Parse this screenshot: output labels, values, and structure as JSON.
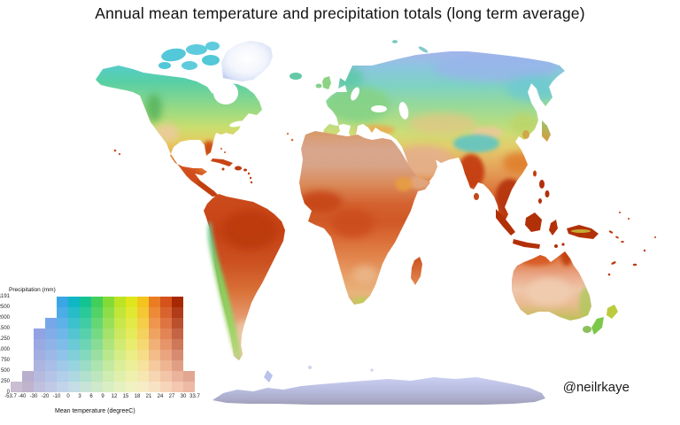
{
  "page": {
    "title": "Annual mean temperature and precipitation totals (long term average)",
    "attribution": "@neilrkaye",
    "background": "#ffffff"
  },
  "chart_data": {
    "type": "heatmap",
    "subtype": "bivariate choropleth world map (temperature hue x precipitation saturation), Robinson-style projection, white ocean",
    "title": "Annual mean temperature and precipitation totals (long term average)",
    "legend": {
      "y_axis_label": "Precipitation (mm)",
      "x_axis_label": "Mean temperature (degreeC)",
      "x_ticks": [
        "-53.7",
        "-40",
        "-30",
        "-20",
        "-10",
        "0",
        "3",
        "6",
        "9",
        "12",
        "15",
        "18",
        "21",
        "24",
        "27",
        "30",
        "33.7"
      ],
      "y_ticks_bottom_to_top": [
        "0",
        "250",
        "500",
        "750",
        "1000",
        "1250",
        "1500",
        "2000",
        "2500",
        "11191"
      ],
      "rows_bottom_to_top": [
        "0-250",
        "250-500",
        "500-750",
        "750-1000",
        "1000-1250",
        "1250-1500",
        "1500-2000",
        "2000-2500",
        "2500-11191"
      ],
      "columns": [
        {
          "temp_range": "-53.7 to -40",
          "color_dry": "#c9bed2",
          "color_wet": "#8a7ad0",
          "rows_present": 1
        },
        {
          "temp_range": "-40 to -30",
          "color_dry": "#c0b4cc",
          "color_wet": "#7f84dc",
          "rows_present": 2
        },
        {
          "temp_range": "-30 to -20",
          "color_dry": "#bfc0de",
          "color_wet": "#7591e4",
          "rows_present": 6
        },
        {
          "temp_range": "-20 to -10",
          "color_dry": "#c0c9e6",
          "color_wet": "#5f9ce8",
          "rows_present": 7
        },
        {
          "temp_range": "-10 to 0",
          "color_dry": "#c2d4ea",
          "color_wet": "#3ba6e6",
          "rows_present": 9
        },
        {
          "temp_range": "0 to 3",
          "color_dry": "#c4dde6",
          "color_wet": "#0fb7c4",
          "rows_present": 9
        },
        {
          "temp_range": "3 to 6",
          "color_dry": "#c8e4d8",
          "color_wet": "#13c492",
          "rows_present": 9
        },
        {
          "temp_range": "6 to 9",
          "color_dry": "#cfe9cb",
          "color_wet": "#41cf5a",
          "rows_present": 9
        },
        {
          "temp_range": "9 to 12",
          "color_dry": "#daeec3",
          "color_wet": "#83da36",
          "rows_present": 9
        },
        {
          "temp_range": "12 to 15",
          "color_dry": "#e6f1c1",
          "color_wet": "#bce324",
          "rows_present": 9
        },
        {
          "temp_range": "15 to 18",
          "color_dry": "#f0f2c2",
          "color_wet": "#dfe61c",
          "rows_present": 9
        },
        {
          "temp_range": "18 to 21",
          "color_dry": "#f6ecc6",
          "color_wet": "#f4c31e",
          "rows_present": 9
        },
        {
          "temp_range": "21 to 24",
          "color_dry": "#f8e2c6",
          "color_wet": "#ea7d24",
          "rows_present": 9
        },
        {
          "temp_range": "24 to 27",
          "color_dry": "#f7d5bb",
          "color_wet": "#d5531a",
          "rows_present": 9
        },
        {
          "temp_range": "27 to 30",
          "color_dry": "#f3c7b0",
          "color_wet": "#a82804",
          "rows_present": 9
        },
        {
          "temp_range": "30 to 33.7",
          "color_dry": "#edbaa6",
          "color_wet": "#9e2000",
          "rows_present": 2
        }
      ]
    },
    "map_regions": [
      {
        "name": "Canadian Arctic / Siberia",
        "reading": "cold: blue-periwinkle to cyan-teal"
      },
      {
        "name": "Greenland / Antarctica",
        "reading": "very cold and dry: white to pale lavender"
      },
      {
        "name": "Europe / mid-latitudes",
        "reading": "mild: green to yellow-green"
      },
      {
        "name": "Sahara, Arabia, central Australia, Patagonia",
        "reading": "hot and dry: pale salmon/tan"
      },
      {
        "name": "Amazon, Congo, India, SE Asia, Indonesia",
        "reading": "hot and wet: deep orange-red"
      }
    ]
  },
  "map": {
    "ocean": "#ffffff",
    "gradients": {
      "na": [
        [
          0,
          "#55ccc8"
        ],
        [
          0.12,
          "#57cfa6"
        ],
        [
          0.25,
          "#7ed592"
        ],
        [
          0.38,
          "#a8dc7c"
        ],
        [
          0.48,
          "#ccde6e"
        ],
        [
          0.58,
          "#e4cc60"
        ],
        [
          0.68,
          "#eeaa4e"
        ],
        [
          0.78,
          "#e67e38"
        ],
        [
          0.88,
          "#d45522"
        ],
        [
          1,
          "#c64018"
        ]
      ],
      "eurasia": [
        [
          0,
          "#a6b4ec"
        ],
        [
          0.1,
          "#8ac6de"
        ],
        [
          0.2,
          "#7ed2c4"
        ],
        [
          0.3,
          "#92d8a0"
        ],
        [
          0.4,
          "#b0dc86"
        ],
        [
          0.48,
          "#cedc76"
        ],
        [
          0.56,
          "#e2ce6c"
        ],
        [
          0.64,
          "#e6b262"
        ],
        [
          0.74,
          "#e29250"
        ],
        [
          0.84,
          "#da7036"
        ],
        [
          0.93,
          "#c84c1a"
        ],
        [
          1,
          "#b0300a"
        ]
      ],
      "africa": [
        [
          0,
          "#d89868"
        ],
        [
          0.1,
          "#d8a68c"
        ],
        [
          0.2,
          "#d8a488"
        ],
        [
          0.3,
          "#da8c5c"
        ],
        [
          0.42,
          "#d46230"
        ],
        [
          0.52,
          "#d05826"
        ],
        [
          0.62,
          "#da6c36"
        ],
        [
          0.74,
          "#e28850"
        ],
        [
          0.85,
          "#e8a46c"
        ],
        [
          0.94,
          "#e8b47e"
        ],
        [
          1,
          "#dcae74"
        ]
      ],
      "sa": [
        [
          0,
          "#cc4c1c"
        ],
        [
          0.22,
          "#c64216"
        ],
        [
          0.42,
          "#cc5222"
        ],
        [
          0.58,
          "#d87036"
        ],
        [
          0.72,
          "#e49466"
        ],
        [
          0.85,
          "#ecba94"
        ],
        [
          0.95,
          "#e6c8a6"
        ],
        [
          1,
          "#c2bc8c"
        ]
      ],
      "aus": [
        [
          0,
          "#d05220"
        ],
        [
          0.15,
          "#e0804e"
        ],
        [
          0.35,
          "#eaa888"
        ],
        [
          0.55,
          "#efc6aa"
        ],
        [
          0.75,
          "#e9bc92"
        ],
        [
          0.9,
          "#d2bc6e"
        ],
        [
          1,
          "#b6c258"
        ]
      ],
      "ant": [
        [
          0,
          "#cad0f2"
        ],
        [
          0.45,
          "#b9bde0"
        ],
        [
          0.75,
          "#acaecd"
        ],
        [
          1,
          "#a0a0b8"
        ]
      ],
      "andes": [
        [
          0,
          "#6ec8a0"
        ],
        [
          0.35,
          "#7ecd60"
        ],
        [
          0.75,
          "#98d464"
        ],
        [
          1,
          "#b2da74"
        ]
      ],
      "mad": [
        [
          0,
          "#cc5020"
        ],
        [
          1,
          "#e28a50"
        ]
      ],
      "japan": [
        [
          0,
          "#9cc465"
        ],
        [
          1,
          "#d89a40"
        ]
      ],
      "greenland": [
        [
          0,
          "#ffffff"
        ],
        [
          0.55,
          "#f2f5fc"
        ],
        [
          0.8,
          "#dde5f8"
        ],
        [
          1,
          "#b9c6ee"
        ]
      ]
    },
    "fills": {
      "arctic_teal": "#52c8d8",
      "arctic_teal2": "#5eccdc",
      "iceland": "#64c9a6",
      "uk": "#8ed284",
      "ireland": "#86d090",
      "svalbard": "#72c8b8",
      "novaya": "#86c8cc",
      "korea": "#cfa84a",
      "cuba": "#c84414",
      "antilles": "#bc3c10",
      "bahamas": "#cc5020",
      "hawaii": "#cc4c18",
      "canary": "#d86c30",
      "indo": "#b23008",
      "png_ridge": "#c8bd3a",
      "taiwan": "#c04010",
      "srilanka": "#c44814",
      "nz_north": "#bcca40",
      "nz_south": "#7cc848",
      "tasmania": "#8cc05c",
      "pacific_dot": "#c03808",
      "peninsula_ice": "#b8c2ea",
      "snow_dot": "#ccd4f0"
    },
    "overlays": {
      "pnw_green": "#4fae58",
      "sw_pale": "#ecc9a0",
      "florida_red": "#c83c10",
      "mexico_red": "#cc4414",
      "centam_red": "#c03c0e",
      "europe_green": "#84d284",
      "scandinavia_teal": "#5cc8a4",
      "siberia_blue": "#9ab2ec",
      "east_siberia_cyan": "#6cc8d4",
      "kazakh_tan": "#e2c684",
      "desert_cn": "#ecc89c",
      "tibet_cyan": "#58c4c8",
      "mideast_pale": "#e4b08c",
      "india_red": "#c23808",
      "sea_red": "#b43008",
      "schina_orange": "#e07c2c",
      "nechina_green": "#bcd468",
      "med_orange": "#eca84c",
      "west_africa_red": "#c64414",
      "congo_red": "#cc4c1c",
      "horn_pale": "#e2a880",
      "ethiopia_orange": "#e8a040",
      "safrica_green": "#c0cc5c",
      "kalahari_pale": "#eab88c",
      "amazon_red": "#bc3a10",
      "patagonia_pale": "#ecc8a8",
      "cape_york_red": "#c03c10",
      "aus_east_green": "#b0c85c",
      "aus_center_pale": "#f0ccb0",
      "aus_north_red": "#d85824"
    }
  }
}
